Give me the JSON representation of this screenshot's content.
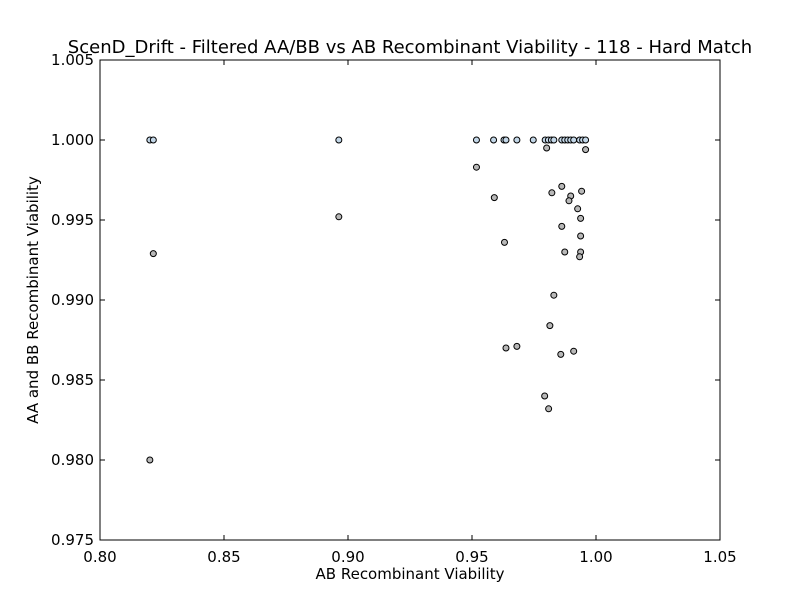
{
  "chart_data": {
    "type": "scatter",
    "title": "ScenD_Drift - Filtered AA/BB vs AB Recombinant Viability - 118 - Hard Match",
    "xlabel": "AB Recombinant Viability",
    "ylabel": "AA and BB Recombinant Viability",
    "xlim": [
      0.8,
      1.05
    ],
    "ylim": [
      0.975,
      1.005
    ],
    "xticks": [
      "0.80",
      "0.85",
      "0.90",
      "0.95",
      "1.00",
      "1.05"
    ],
    "yticks": [
      "0.975",
      "0.980",
      "0.985",
      "0.990",
      "0.995",
      "1.000",
      "1.005"
    ],
    "grid": false,
    "series": [
      {
        "color": "#c3d7e8",
        "points": [
          [
            0.8201,
            1.0
          ],
          [
            0.8215,
            1.0
          ],
          [
            0.8963,
            1.0
          ],
          [
            0.9518,
            1.0
          ],
          [
            0.9587,
            1.0
          ],
          [
            0.9629,
            1.0
          ],
          [
            0.9637,
            1.0
          ],
          [
            0.9681,
            1.0
          ],
          [
            0.9747,
            1.0
          ],
          [
            0.9795,
            1.0
          ],
          [
            0.9808,
            1.0
          ],
          [
            0.982,
            1.0
          ],
          [
            0.983,
            1.0
          ],
          [
            0.9862,
            1.0
          ],
          [
            0.9874,
            1.0
          ],
          [
            0.9886,
            1.0
          ],
          [
            0.9898,
            1.0
          ],
          [
            0.991,
            1.0
          ],
          [
            0.9934,
            1.0
          ],
          [
            0.9946,
            1.0
          ],
          [
            0.9958,
            1.0
          ]
        ]
      },
      {
        "color": "#b8b8b8",
        "points": [
          [
            0.9801,
            0.9995
          ],
          [
            0.9958,
            0.9994
          ],
          [
            0.9518,
            0.9983
          ],
          [
            0.9862,
            0.9971
          ],
          [
            0.9942,
            0.9968
          ],
          [
            0.9822,
            0.9967
          ],
          [
            0.959,
            0.9964
          ],
          [
            0.9898,
            0.9965
          ],
          [
            0.9891,
            0.9962
          ],
          [
            0.9926,
            0.9957
          ],
          [
            0.9938,
            0.9951
          ],
          [
            0.8963,
            0.9952
          ],
          [
            0.9862,
            0.9946
          ],
          [
            0.9938,
            0.994
          ],
          [
            0.9631,
            0.9936
          ],
          [
            0.9874,
            0.993
          ],
          [
            0.9938,
            0.993
          ],
          [
            0.9934,
            0.9927
          ],
          [
            0.8215,
            0.9929
          ],
          [
            0.983,
            0.9903
          ],
          [
            0.9814,
            0.9884
          ],
          [
            0.9681,
            0.9871
          ],
          [
            0.9637,
            0.987
          ],
          [
            0.991,
            0.9868
          ],
          [
            0.9858,
            0.9866
          ],
          [
            0.9793,
            0.984
          ],
          [
            0.9809,
            0.9832
          ],
          [
            0.8201,
            0.98
          ]
        ]
      }
    ]
  }
}
